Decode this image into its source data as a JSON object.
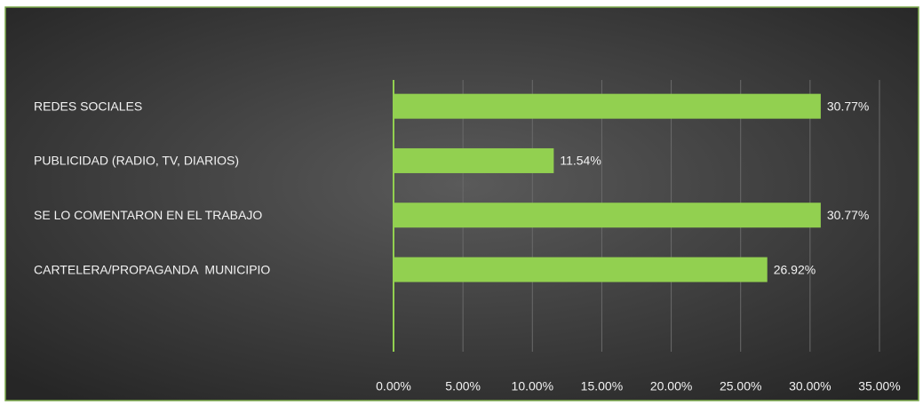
{
  "chart_data": {
    "type": "bar",
    "orientation": "horizontal",
    "categories": [
      "REDES SOCIALES",
      "PUBLICIDAD (RADIO, TV, DIARIOS)",
      "SE LO COMENTARON EN EL TRABAJO",
      "CARTELERA/PROPAGANDA  MUNICIPIO"
    ],
    "values": [
      30.77,
      11.54,
      30.77,
      26.92
    ],
    "value_labels": [
      "30.77%",
      "11.54%",
      "30.77%",
      "26.92%"
    ],
    "color": "#92d050",
    "xlim": [
      0,
      35
    ],
    "xticks": [
      {
        "value": 0,
        "label": "0.00%"
      },
      {
        "value": 5,
        "label": "5.00%"
      },
      {
        "value": 10,
        "label": "10.00%"
      },
      {
        "value": 15,
        "label": "15.00%"
      },
      {
        "value": 20,
        "label": "20.00%"
      },
      {
        "value": 25,
        "label": "25.00%"
      },
      {
        "value": 30,
        "label": "30.00%"
      },
      {
        "value": 35,
        "label": "35.00%"
      }
    ],
    "grid": true
  }
}
